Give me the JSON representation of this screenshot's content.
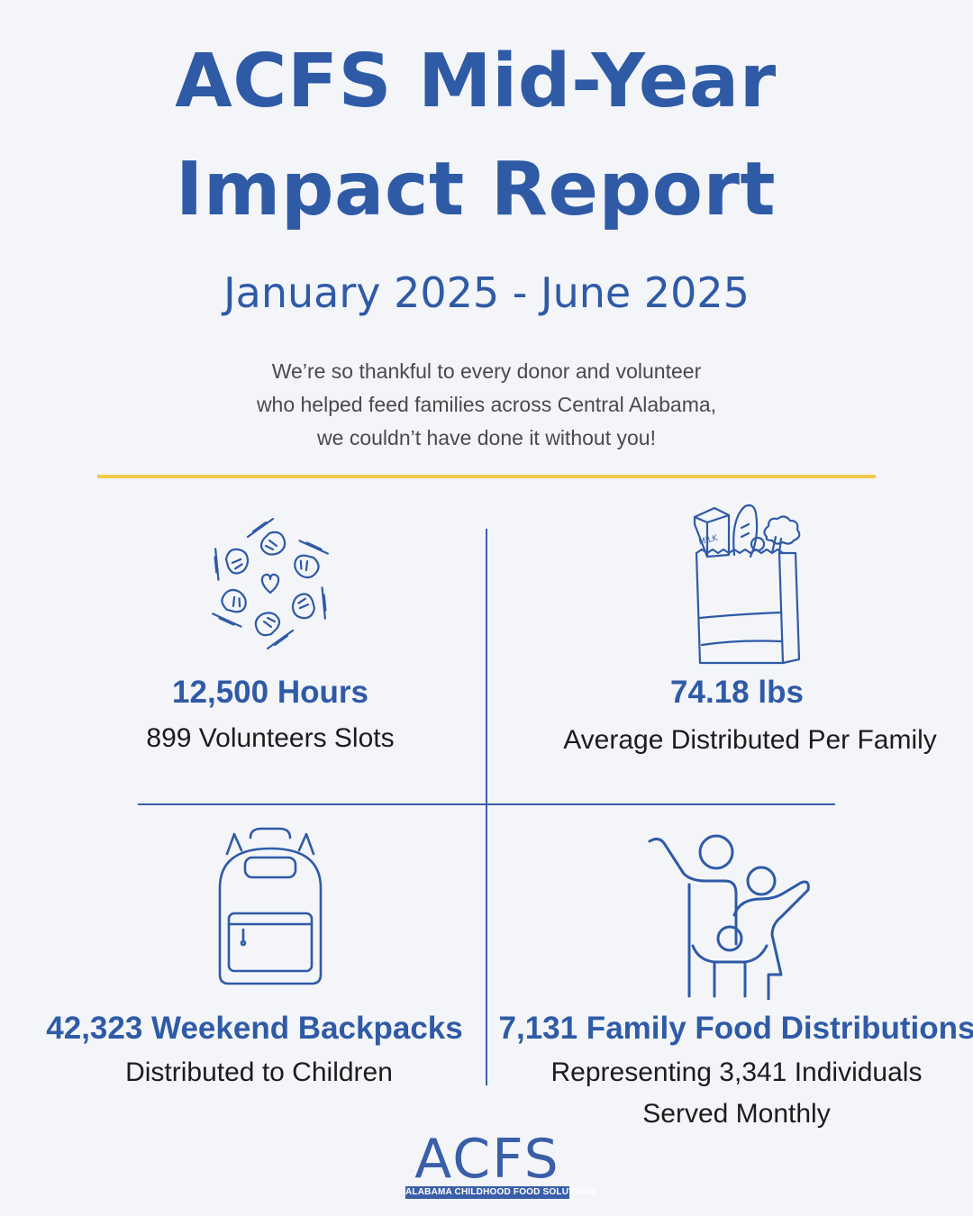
{
  "header": {
    "title_line_1": "ACFS Mid-Year",
    "title_line_2": "Impact Report",
    "date_range": "January 2025 - June 2025"
  },
  "intro": {
    "line_1": "We’re so thankful to every donor and volunteer",
    "line_2": "who helped feed families across Central Alabama,",
    "line_3": "we couldn’t have done it without you!"
  },
  "stats": [
    {
      "icon": "volunteer-hands-icon",
      "value": "12,500 Hours",
      "label_1": "899 Volunteers Slots",
      "label_2": ""
    },
    {
      "icon": "grocery-bag-icon",
      "value": "74.18 lbs",
      "label_1": "Average Distributed Per Family",
      "label_2": ""
    },
    {
      "icon": "backpack-icon",
      "value": "42,323 Weekend Backpacks",
      "label_1": "Distributed to Children",
      "label_2": ""
    },
    {
      "icon": "family-icon",
      "value": "7,131 Family Food Distributions",
      "label_1": "Representing 3,341 Individuals",
      "label_2": "Served Monthly"
    }
  ],
  "logo": {
    "letters": "ACFS",
    "tagline": "ALABAMA CHILDHOOD FOOD SOLUTIONS"
  },
  "colors": {
    "primary_blue": "#2f5aa6",
    "accent_gold": "#f2c94c",
    "background": "#f3f5f9"
  }
}
